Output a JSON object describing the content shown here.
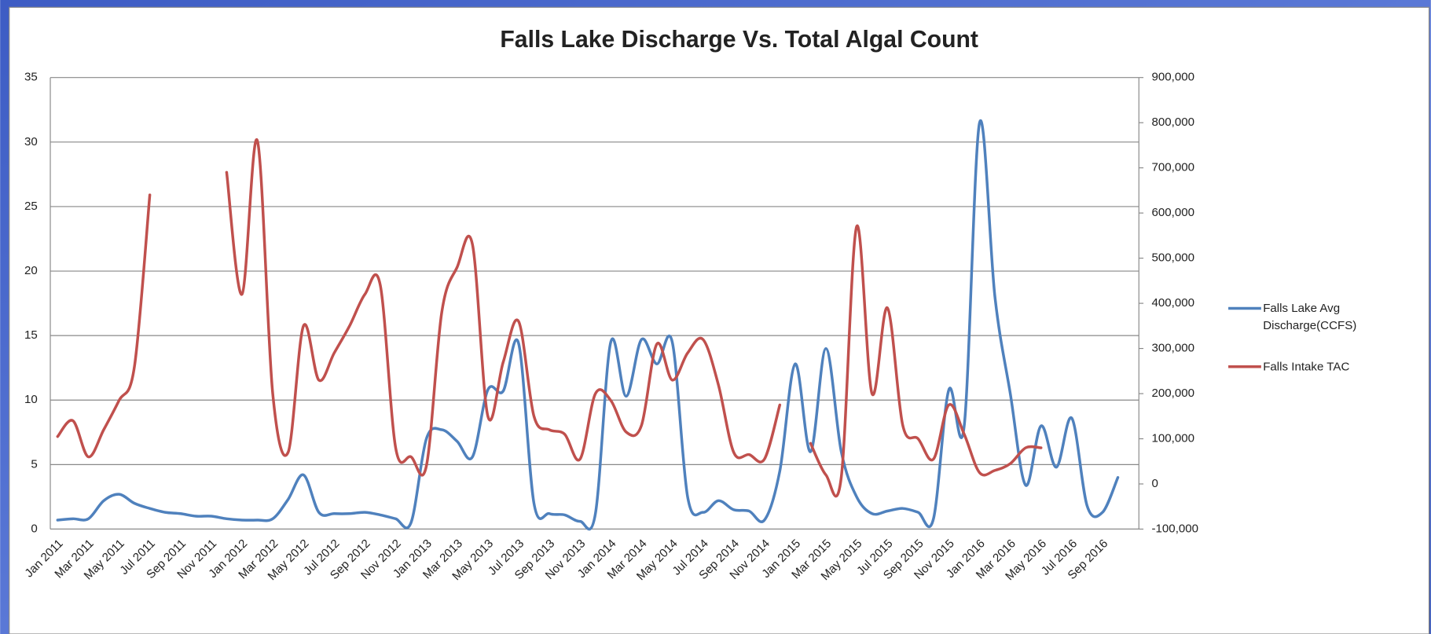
{
  "chart_data": {
    "type": "line",
    "title": "Falls Lake Discharge Vs. Total Algal Count",
    "categories": [
      "Jan 2011",
      null,
      "Mar 2011",
      null,
      "May 2011",
      null,
      "Jul 2011",
      null,
      "Sep 2011",
      null,
      "Nov 2011",
      null,
      "Jan 2012",
      null,
      "Mar 2012",
      null,
      "May 2012",
      null,
      "Jul 2012",
      null,
      "Sep 2012",
      null,
      "Nov 2012",
      null,
      "Jan 2013",
      null,
      "Mar 2013",
      null,
      "May 2013",
      null,
      "Jul 2013",
      null,
      "Sep 2013",
      null,
      "Nov 2013",
      null,
      "Jan 2014",
      null,
      "Mar 2014",
      null,
      "May 2014",
      null,
      "Jul 2014",
      null,
      "Sep 2014",
      null,
      "Nov 2014",
      null,
      "Jan 2015",
      null,
      "Mar 2015",
      null,
      "May 2015",
      null,
      "Jul 2015",
      null,
      "Sep 2015",
      null,
      "Nov 2015",
      null,
      "Jan 2016",
      null,
      "Mar 2016",
      null,
      "May 2016",
      null,
      "Jul 2016",
      null,
      "Sep 2016",
      null
    ],
    "series": [
      {
        "name": "Falls Lake Avg Discharge(CCFS)",
        "color": "#4f81bd",
        "values": [
          0.7,
          0.8,
          0.8,
          2.2,
          2.7,
          2.0,
          1.6,
          1.3,
          1.2,
          1.0,
          1.0,
          0.8,
          0.7,
          0.7,
          0.8,
          2.3,
          4.2,
          1.3,
          1.2,
          1.2,
          1.3,
          1.1,
          0.8,
          0.5,
          7.0,
          7.7,
          6.8,
          5.6,
          10.8,
          10.7,
          14.4,
          2.0,
          1.2,
          1.1,
          0.6,
          1.2,
          14.5,
          10.3,
          14.7,
          12.8,
          14.5,
          2.5,
          1.3,
          2.2,
          1.5,
          1.4,
          0.7,
          4.5,
          12.8,
          6.0,
          14.0,
          6.0,
          2.5,
          1.2,
          1.4,
          1.6,
          1.3,
          0.8,
          10.8,
          8.0,
          31.5,
          18,
          10.5,
          3.4,
          8.0,
          4.8,
          8.6,
          1.8,
          1.3,
          4.0
        ]
      },
      {
        "name": "Falls Intake TAC",
        "color": "#c0504d",
        "axis": "y2",
        "values": [
          105000,
          140000,
          60000,
          120000,
          185000,
          260000,
          640000,
          null,
          null,
          null,
          null,
          690000,
          420000,
          760000,
          200000,
          70000,
          350000,
          230000,
          290000,
          350000,
          420000,
          440000,
          80000,
          60000,
          40000,
          380000,
          480000,
          530000,
          150000,
          270000,
          360000,
          150000,
          120000,
          110000,
          55000,
          200000,
          185000,
          115000,
          130000,
          310000,
          230000,
          290000,
          320000,
          220000,
          70000,
          65000,
          55000,
          175000,
          null,
          90000,
          20000,
          15000,
          570000,
          200000,
          390000,
          130000,
          100000,
          55000,
          175000,
          110000,
          25000,
          30000,
          45000,
          80000,
          80000,
          null,
          null,
          null,
          null,
          null
        ]
      }
    ],
    "ylim": [
      0,
      35
    ],
    "yticks": [
      0,
      5,
      10,
      15,
      20,
      25,
      30,
      35
    ],
    "y2lim": [
      -100000,
      900000
    ],
    "y2ticks": [
      {
        "value": -100000,
        "label": "-100,000"
      },
      0,
      {
        "value": 100000,
        "label": "100,000"
      },
      {
        "value": 200000,
        "label": "200,000"
      },
      {
        "value": 300000,
        "label": "300,000"
      },
      {
        "value": 400000,
        "label": "400,000"
      },
      {
        "value": 500000,
        "label": "500,000"
      },
      {
        "value": 600000,
        "label": "600,000"
      },
      {
        "value": 700000,
        "label": "700,000"
      },
      {
        "value": 800000,
        "label": "800,000"
      },
      {
        "value": 900000,
        "label": "900,000"
      }
    ],
    "grid": true,
    "legend": "right"
  }
}
